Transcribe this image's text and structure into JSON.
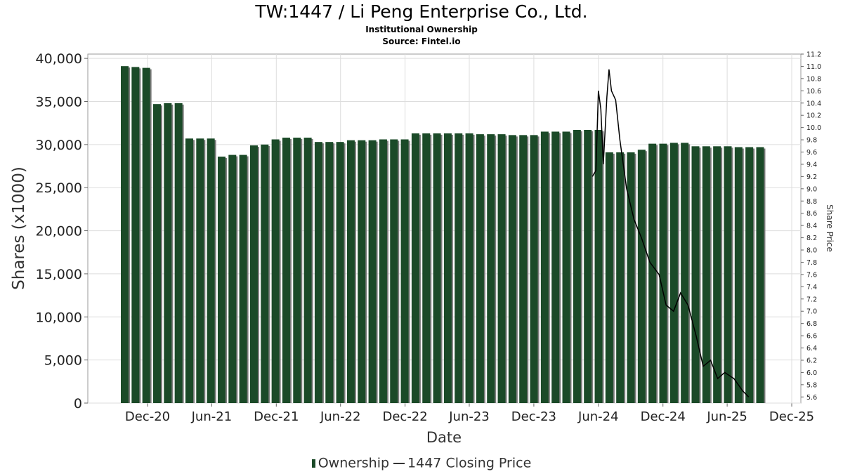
{
  "header": {
    "title": "TW:1447 / Li Peng Enterprise Co., Ltd.",
    "subtitle": "Institutional Ownership",
    "source": "Source: Fintel.io"
  },
  "chart_data": {
    "type": "bar",
    "title": "TW:1447 / Li Peng Enterprise Co., Ltd.",
    "xlabel": "Date",
    "ylabel": "Shares (x1000)",
    "y2label": "Share Price",
    "ylim": [
      0,
      40500
    ],
    "y2lim": [
      5.5,
      11.2
    ],
    "x_ticks": [
      "Dec-20",
      "Jun-21",
      "Dec-21",
      "Jun-22",
      "Dec-22",
      "Jun-23",
      "Dec-23",
      "Jun-24",
      "Dec-24",
      "Jun-25",
      "Dec-25"
    ],
    "y_ticks": [
      "0",
      "5,000",
      "10,000",
      "15,000",
      "20,000",
      "25,000",
      "30,000",
      "35,000",
      "40,000"
    ],
    "y2_ticks": [
      "5.6",
      "5.8",
      "6.0",
      "6.2",
      "6.4",
      "6.6",
      "6.8",
      "7.0",
      "7.2",
      "7.4",
      "7.6",
      "7.8",
      "8.0",
      "8.2",
      "8.4",
      "8.6",
      "8.8",
      "9.0",
      "9.2",
      "9.4",
      "9.6",
      "9.8",
      "10.0",
      "10.2",
      "10.4",
      "10.6",
      "10.8",
      "11.0",
      "11.2"
    ],
    "grid": true,
    "legend_position": "bottom",
    "colors": {
      "bar": "#1b4a28",
      "bar_shadow": "#7c7c7c",
      "line": "#000000",
      "grid": "#dddddd"
    },
    "series": [
      {
        "name": "Ownership",
        "type": "bar",
        "values": [
          39100,
          39000,
          38900,
          34700,
          34800,
          34800,
          30700,
          30700,
          30700,
          28600,
          28800,
          28800,
          29900,
          30000,
          30600,
          30800,
          30800,
          30800,
          30300,
          30300,
          30300,
          30500,
          30500,
          30500,
          30600,
          30600,
          30600,
          31300,
          31300,
          31300,
          31300,
          31300,
          31300,
          31200,
          31200,
          31200,
          31100,
          31100,
          31100,
          31500,
          31500,
          31500,
          31700,
          31700,
          31700,
          29100,
          29100,
          29100,
          29400,
          30100,
          30100,
          30200,
          30200,
          29800,
          29800,
          29800,
          29800,
          29700,
          29700,
          29700
        ]
      },
      {
        "name": "1447 Closing Price",
        "type": "line",
        "points": [
          [
            "2024-05-15",
            9.2
          ],
          [
            "2024-05-25",
            9.3
          ],
          [
            "2024-06-01",
            10.6
          ],
          [
            "2024-06-08",
            10.3
          ],
          [
            "2024-06-15",
            9.4
          ],
          [
            "2024-06-25",
            10.5
          ],
          [
            "2024-07-01",
            10.95
          ],
          [
            "2024-07-08",
            10.6
          ],
          [
            "2024-07-20",
            10.45
          ],
          [
            "2024-08-01",
            9.8
          ],
          [
            "2024-08-20",
            9.0
          ],
          [
            "2024-09-10",
            8.5
          ],
          [
            "2024-10-01",
            8.2
          ],
          [
            "2024-10-25",
            7.8
          ],
          [
            "2024-11-20",
            7.6
          ],
          [
            "2024-12-10",
            7.1
          ],
          [
            "2024-12-31",
            7.0
          ],
          [
            "2025-01-20",
            7.3
          ],
          [
            "2025-02-10",
            7.1
          ],
          [
            "2025-03-05",
            6.6
          ],
          [
            "2025-03-25",
            6.1
          ],
          [
            "2025-04-15",
            6.2
          ],
          [
            "2025-05-05",
            5.9
          ],
          [
            "2025-05-25",
            6.0
          ],
          [
            "2025-06-20",
            5.9
          ],
          [
            "2025-07-15",
            5.7
          ],
          [
            "2025-08-01",
            5.6
          ]
        ]
      }
    ]
  },
  "legend": {
    "items": [
      {
        "label": "Ownership"
      },
      {
        "label": "1447 Closing Price"
      }
    ]
  }
}
